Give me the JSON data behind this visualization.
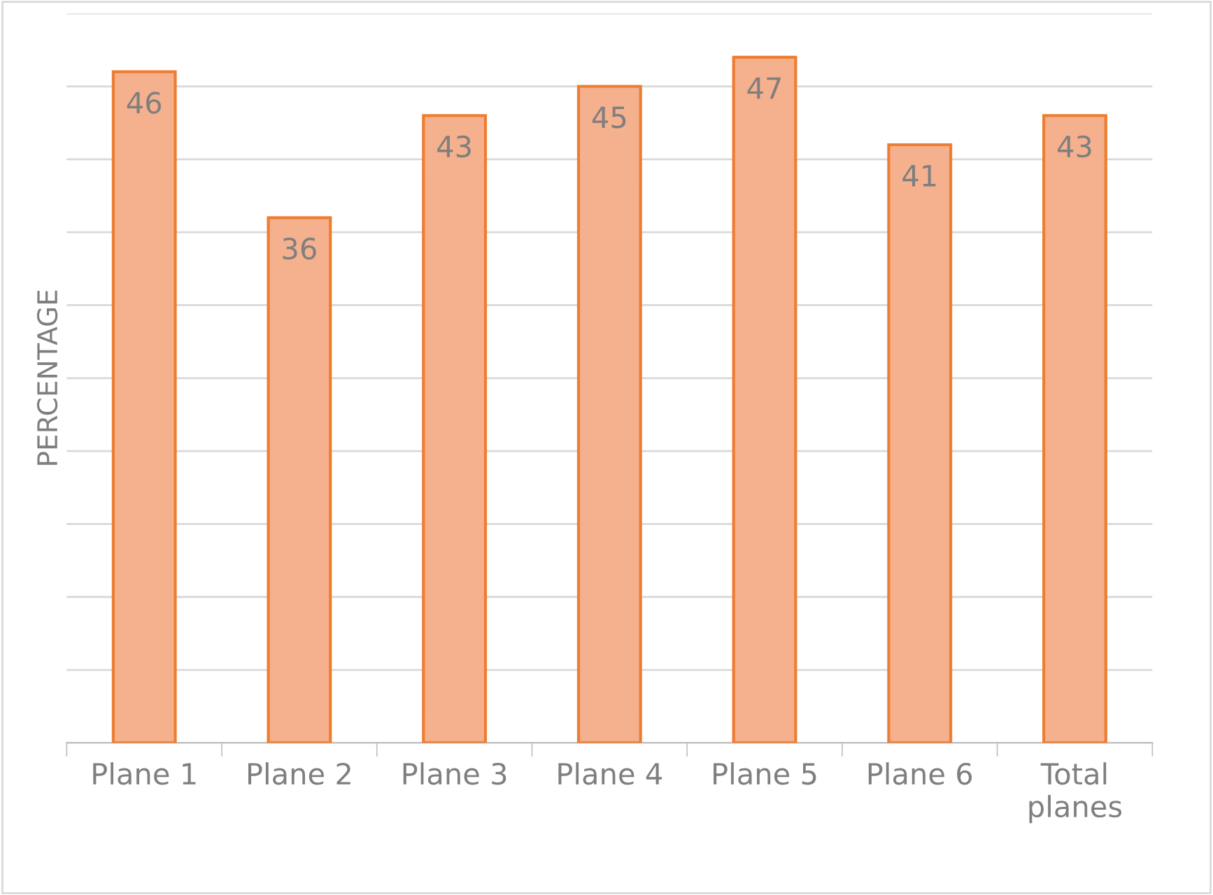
{
  "chart_data": {
    "type": "bar",
    "ylabel": "PERCENTAGE",
    "categories": [
      "Plane 1",
      "Plane 2",
      "Plane 3",
      "Plane 4",
      "Plane 5",
      "Plane 6",
      "Total planes"
    ],
    "values": [
      46,
      36,
      43,
      45,
      47,
      41,
      43
    ],
    "color": "#f5b08e",
    "ylim": [
      0,
      50
    ],
    "yticks": [
      {
        "value": 0,
        "label": null
      },
      {
        "value": 5,
        "label": null
      },
      {
        "value": 10,
        "label": null
      },
      {
        "value": 15,
        "label": null
      },
      {
        "value": 20,
        "label": null
      },
      {
        "value": 25,
        "label": null
      },
      {
        "value": 30,
        "label": null
      },
      {
        "value": 35,
        "label": null
      },
      {
        "value": 40,
        "label": null
      },
      {
        "value": 45,
        "label": null
      },
      {
        "value": 50,
        "label": null
      }
    ],
    "grid": "y",
    "data_labels": true,
    "tick_labels": "x"
  }
}
